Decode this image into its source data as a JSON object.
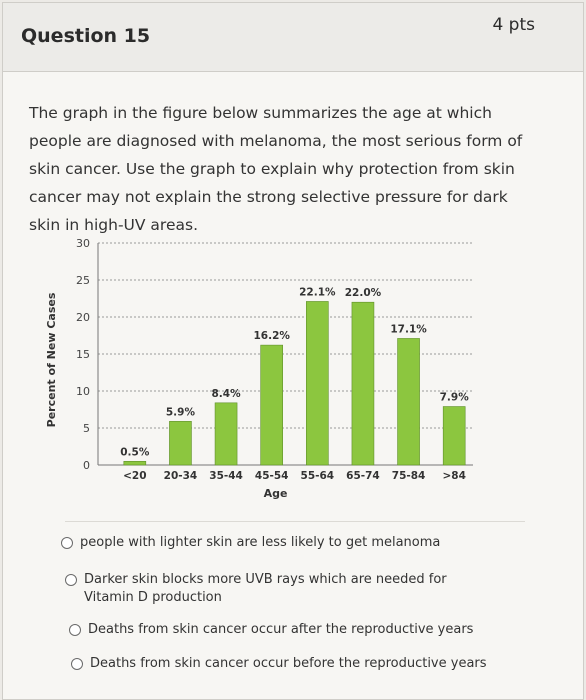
{
  "question": {
    "title": "Question 15",
    "points": "4 pts"
  },
  "prompt": "The graph in the figure below summarizes the age at which people are diagnosed with melanoma, the most serious form of skin cancer. Use the graph to explain why protection from skin cancer may not explain the strong selective pressure for dark skin in high-UV areas.",
  "chart_data": {
    "type": "bar",
    "categories": [
      "<20",
      "20-34",
      "35-44",
      "45-54",
      "55-64",
      "65-74",
      "75-84",
      ">84"
    ],
    "values": [
      0.5,
      5.9,
      8.4,
      16.2,
      22.1,
      22.0,
      17.1,
      7.9
    ],
    "data_labels": [
      "0.5%",
      "5.9%",
      "8.4%",
      "16.2%",
      "22.1%",
      "22.0%",
      "17.1%",
      "7.9%"
    ],
    "xlabel": "Age",
    "ylabel": "Percent of New Cases",
    "ylim": [
      0,
      30
    ],
    "yticks": [
      0,
      5,
      10,
      15,
      20,
      25,
      30
    ],
    "grid": true,
    "bar_color": "#8cc63f"
  },
  "answers": [
    "people with lighter skin are less likely to get melanoma",
    "Darker skin blocks more UVB rays which are needed for Vitamin D production",
    "Deaths from skin cancer occur after the reproductive years",
    "Deaths from skin cancer occur before the reproductive years"
  ]
}
